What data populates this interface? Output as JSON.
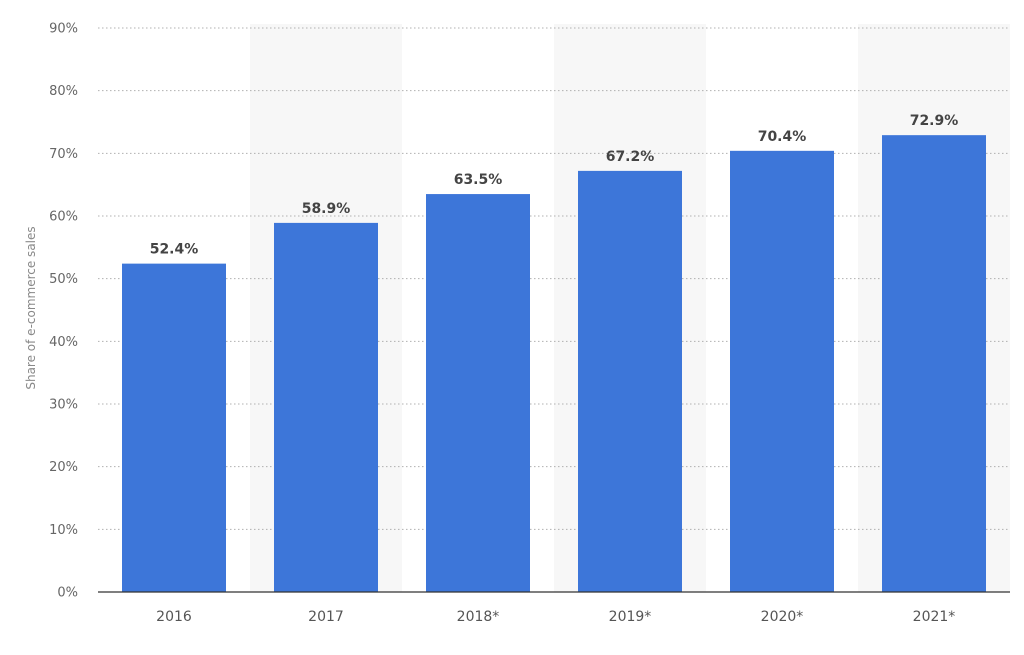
{
  "chart_data": {
    "type": "bar",
    "categories": [
      "2016",
      "2017",
      "2018*",
      "2019*",
      "2020*",
      "2021*"
    ],
    "values": [
      52.4,
      58.9,
      63.5,
      67.2,
      70.4,
      72.9
    ],
    "value_labels": [
      "52.4%",
      "58.9%",
      "63.5%",
      "67.2%",
      "70.4%",
      "72.9%"
    ],
    "ylabel": "Share of e-commerce sales",
    "ylim": [
      0,
      90
    ],
    "yticks": [
      0,
      10,
      20,
      30,
      40,
      50,
      60,
      70,
      80,
      90
    ],
    "ytick_labels": [
      "0%",
      "10%",
      "20%",
      "30%",
      "40%",
      "50%",
      "60%",
      "70%",
      "80%",
      "90%"
    ],
    "grid": true,
    "legend": "none",
    "colors": {
      "bar": "#3d76d9",
      "alt_band": "#f7f7f7",
      "axis": "#333333"
    }
  }
}
